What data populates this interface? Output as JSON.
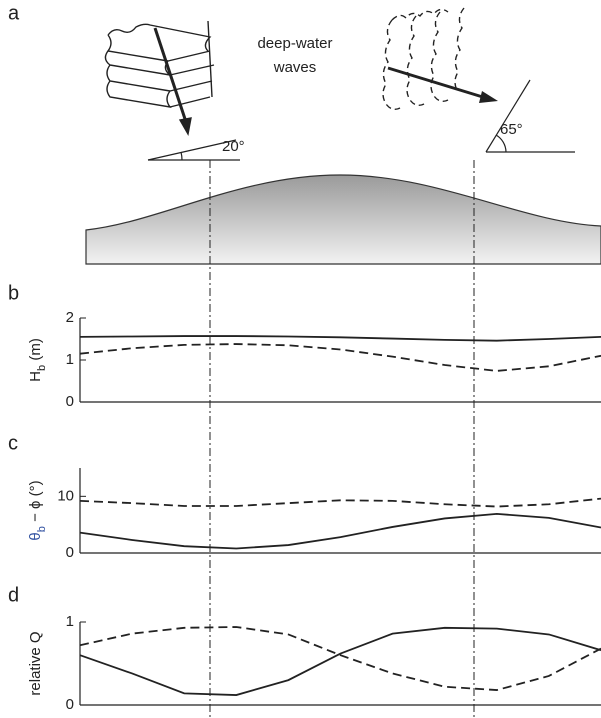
{
  "panel_a": {
    "label": "a",
    "caption_lines": [
      "deep-water",
      "waves"
    ],
    "angles": [
      "20°",
      "65°"
    ]
  },
  "chart_data": [
    {
      "type": "line",
      "panel_label": "b",
      "ylabel_parts": [
        "H",
        "b",
        " (m)"
      ],
      "x": [
        0,
        0.1,
        0.2,
        0.3,
        0.4,
        0.5,
        0.6,
        0.7,
        0.8,
        0.9,
        1.0
      ],
      "xlim": [
        0,
        1
      ],
      "ylim": [
        0,
        2
      ],
      "yticks": [
        0,
        1,
        2
      ],
      "series": [
        {
          "color": "#222222",
          "dash": false,
          "values": [
            1.55,
            1.56,
            1.57,
            1.57,
            1.56,
            1.54,
            1.51,
            1.48,
            1.46,
            1.5,
            1.55
          ]
        },
        {
          "color": "#222222",
          "dash": true,
          "values": [
            1.15,
            1.28,
            1.36,
            1.38,
            1.35,
            1.25,
            1.08,
            0.88,
            0.74,
            0.85,
            1.1
          ]
        }
      ]
    },
    {
      "type": "line",
      "panel_label": "c",
      "ylabel_parts": [
        "θ",
        "b",
        " − ϕ (°)"
      ],
      "x": [
        0,
        0.1,
        0.2,
        0.3,
        0.4,
        0.5,
        0.6,
        0.7,
        0.8,
        0.9,
        1.0
      ],
      "xlim": [
        0,
        1
      ],
      "ylim": [
        0,
        15
      ],
      "yticks": [
        0,
        10
      ],
      "series": [
        {
          "color": "#222222",
          "dash": false,
          "values": [
            3.6,
            2.3,
            1.2,
            0.8,
            1.4,
            2.8,
            4.6,
            6.1,
            6.9,
            6.2,
            4.5
          ]
        },
        {
          "color": "#222222",
          "dash": true,
          "values": [
            9.2,
            8.8,
            8.3,
            8.3,
            8.8,
            9.3,
            9.2,
            8.6,
            8.2,
            8.6,
            9.6
          ]
        }
      ]
    },
    {
      "type": "line",
      "panel_label": "d",
      "ylabel_parts": [
        "relative Q"
      ],
      "x": [
        0,
        0.1,
        0.2,
        0.3,
        0.4,
        0.5,
        0.6,
        0.7,
        0.8,
        0.9,
        1.0
      ],
      "xlim": [
        0,
        1
      ],
      "ylim": [
        0,
        1
      ],
      "yticks": [
        0,
        1
      ],
      "series": [
        {
          "color": "#222222",
          "dash": false,
          "values": [
            0.6,
            0.38,
            0.14,
            0.12,
            0.3,
            0.62,
            0.86,
            0.93,
            0.92,
            0.85,
            0.66
          ]
        },
        {
          "color": "#222222",
          "dash": true,
          "values": [
            0.72,
            0.86,
            0.93,
            0.94,
            0.85,
            0.6,
            0.38,
            0.22,
            0.18,
            0.35,
            0.68
          ]
        }
      ]
    }
  ]
}
